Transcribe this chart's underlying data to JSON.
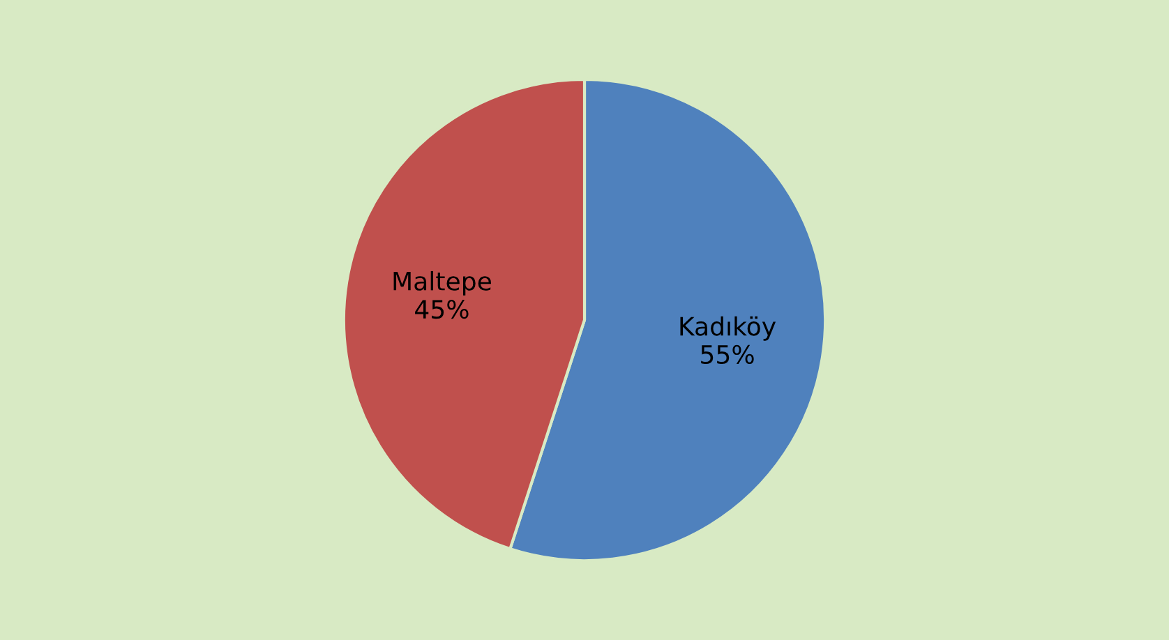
{
  "chart_data": {
    "type": "pie",
    "categories": [
      "Kadıköy",
      "Maltepe"
    ],
    "values": [
      55,
      45
    ],
    "value_labels": [
      "55%",
      "45%"
    ],
    "colors": [
      "#4f81bd",
      "#c0504d"
    ],
    "legend": false
  }
}
